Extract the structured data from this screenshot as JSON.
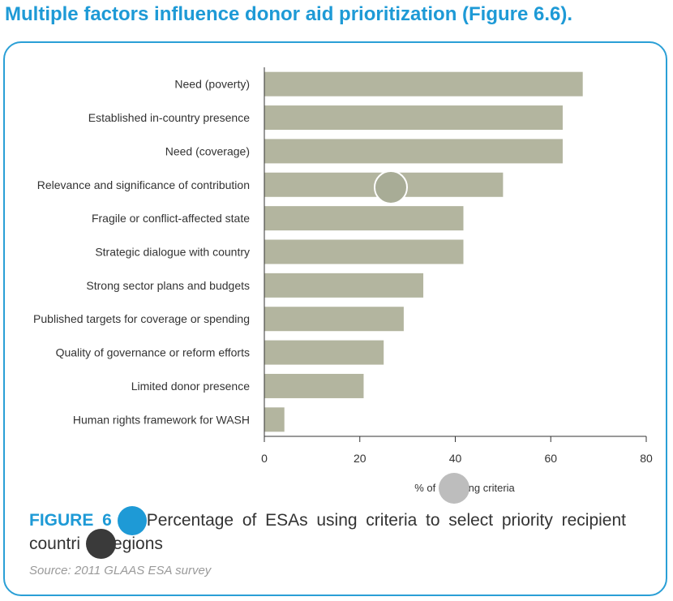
{
  "headline": "Multiple factors influence donor aid prioritization (Figure 6.6).",
  "caption": {
    "figure_label": "FIGURE 6",
    "line1": "Percentage of ESAs using criteria to select priority recipient",
    "line2_start": "countri",
    "line2_end": "egions"
  },
  "source": "Source: 2011 GLAAS ESA survey",
  "colors": {
    "accent": "#1e9ad6",
    "bar": "#b3b59f",
    "axis": "#333333"
  },
  "chart_data": {
    "type": "bar",
    "orientation": "horizontal",
    "categories": [
      "Need (poverty)",
      "Established in-country presence",
      "Need (coverage)",
      "Relevance and significance of contribution",
      "Fragile or conflict-affected state",
      "Strategic dialogue with country",
      "Strong sector plans and budgets",
      "Published targets for coverage or spending",
      "Quality of governance or reform efforts",
      "Limited donor presence",
      "Human rights framework for WASH"
    ],
    "values": [
      66.7,
      62.5,
      62.5,
      50.0,
      41.7,
      41.7,
      33.3,
      29.2,
      25.0,
      20.8,
      4.2
    ],
    "xlabel": "% of E       ing criteria",
    "xlim": [
      0,
      80
    ],
    "xticks": [
      "0",
      "20",
      "40",
      "60",
      "80"
    ],
    "grid": false,
    "legend": "none"
  }
}
